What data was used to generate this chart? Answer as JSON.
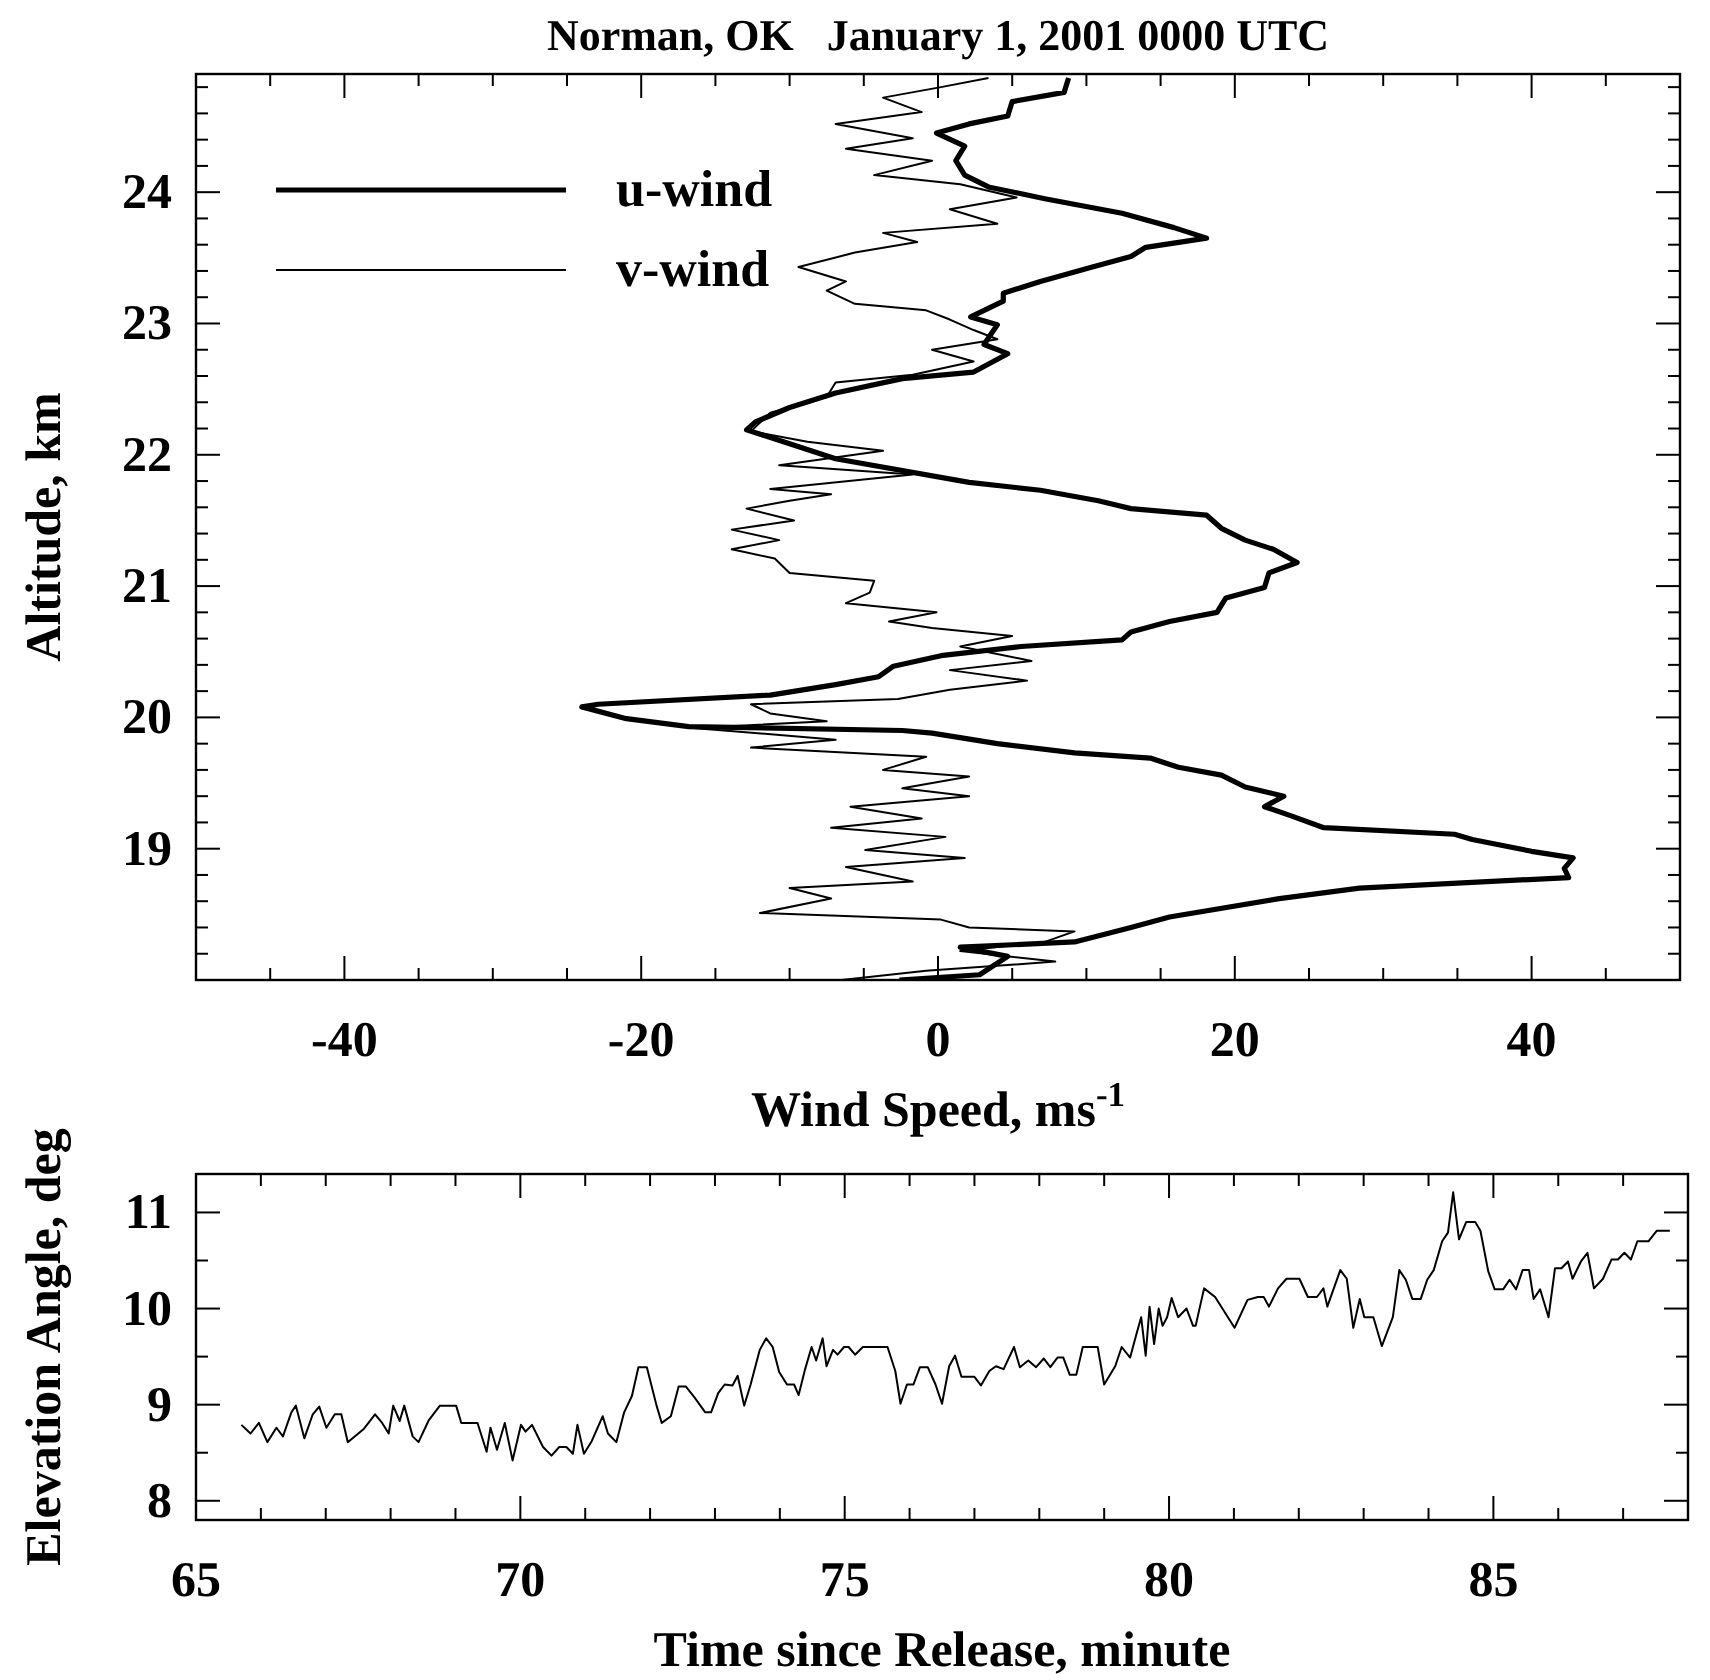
{
  "chart_data": [
    {
      "type": "line",
      "title": "Norman, OK   January 1, 2001 0000 UTC",
      "xlabel": "Wind Speed, ms$^{-1}$",
      "ylabel": "Altitude, km",
      "legend": "top left",
      "xlim": [
        -50,
        50
      ],
      "ylim": [
        18,
        24.9
      ],
      "xticks": [
        {
          "value": -50,
          "label": null
        },
        {
          "value": -45,
          "label": null
        },
        -40,
        {
          "value": -35,
          "label": null
        },
        {
          "value": -30,
          "label": null
        },
        {
          "value": -25,
          "label": null
        },
        -20,
        {
          "value": -15,
          "label": null
        },
        {
          "value": -10,
          "label": null
        },
        {
          "value": -5,
          "label": null
        },
        0,
        {
          "value": 5,
          "label": null
        },
        {
          "value": 10,
          "label": null
        },
        {
          "value": 15,
          "label": null
        },
        20,
        {
          "value": 25,
          "label": null
        },
        {
          "value": 30,
          "label": null
        },
        {
          "value": 35,
          "label": null
        },
        40,
        {
          "value": 45,
          "label": null
        },
        {
          "value": 50,
          "label": null
        }
      ],
      "yticks": [
        {
          "value": 18.2,
          "label": null
        },
        {
          "value": 18.4,
          "label": null
        },
        {
          "value": 18.6,
          "label": null
        },
        {
          "value": 18.8,
          "label": null
        },
        19,
        {
          "value": 19.2,
          "label": null
        },
        {
          "value": 19.4,
          "label": null
        },
        {
          "value": 19.6,
          "label": null
        },
        {
          "value": 19.8,
          "label": null
        },
        20,
        {
          "value": 20.2,
          "label": null
        },
        {
          "value": 20.4,
          "label": null
        },
        {
          "value": 20.6,
          "label": null
        },
        {
          "value": 20.8,
          "label": null
        },
        21,
        {
          "value": 21.2,
          "label": null
        },
        {
          "value": 21.4,
          "label": null
        },
        {
          "value": 21.6,
          "label": null
        },
        {
          "value": 21.8,
          "label": null
        },
        22,
        {
          "value": 22.2,
          "label": null
        },
        {
          "value": 22.4,
          "label": null
        },
        {
          "value": 22.6,
          "label": null
        },
        {
          "value": 22.8,
          "label": null
        },
        23,
        {
          "value": 23.2,
          "label": null
        },
        {
          "value": 23.4,
          "label": null
        },
        {
          "value": 23.6,
          "label": null
        },
        {
          "value": 23.8,
          "label": null
        },
        24,
        {
          "value": 24.2,
          "label": null
        },
        {
          "value": 24.4,
          "label": null
        },
        {
          "value": 24.6,
          "label": null
        },
        {
          "value": 24.8,
          "label": null
        }
      ],
      "series": [
        {
          "name": "u-wind",
          "color": "#000000",
          "x": [
            -2.6,
            2.8,
            4.7,
            1.5,
            9.2,
            13,
            15.6,
            23,
            28.4,
            42.5,
            42.2,
            42.8,
            40,
            36,
            34.8,
            26,
            23.8,
            22,
            23.3,
            20.7,
            19.1,
            16.2,
            14.3,
            9.2,
            4,
            -0.4,
            -2.4,
            -16.8,
            -21,
            -24,
            -22.9,
            -11.3,
            -6.9,
            -4,
            -3,
            0.2,
            5.6,
            12.4,
            13,
            15.6,
            18.8,
            19.4,
            22,
            22.3,
            24.2,
            22.6,
            20.7,
            19.1,
            18.1,
            13,
            10.8,
            6.9,
            2.1,
            -6.9,
            -12.9,
            -12.3,
            -10,
            -6.9,
            -2.4,
            2.4,
            4.7,
            3.1,
            4,
            2.2,
            4.4,
            4.4,
            6.9,
            10.4,
            13,
            14,
            18.1,
            15.9,
            12.4,
            7.2,
            3.4,
            1.8,
            1.2,
            1.8,
            -0.1,
            2.1,
            4.7,
            5,
            8.5,
            8.8
          ],
          "values": [
            18.0,
            18.04,
            18.18,
            18.25,
            18.29,
            18.4,
            18.48,
            18.62,
            18.7,
            18.78,
            18.85,
            18.93,
            18.98,
            19.07,
            19.11,
            19.16,
            19.25,
            19.32,
            19.4,
            19.47,
            19.56,
            19.62,
            19.69,
            19.73,
            19.8,
            19.88,
            19.9,
            19.93,
            19.99,
            20.08,
            20.1,
            20.17,
            20.25,
            20.31,
            20.39,
            20.47,
            20.54,
            20.59,
            20.65,
            20.73,
            20.8,
            20.91,
            20.99,
            21.1,
            21.18,
            21.28,
            21.35,
            21.44,
            21.54,
            21.59,
            21.65,
            21.73,
            21.79,
            21.97,
            22.19,
            22.25,
            22.36,
            22.47,
            22.58,
            22.63,
            22.77,
            22.84,
            22.99,
            23.05,
            23.17,
            23.23,
            23.32,
            23.43,
            23.51,
            23.58,
            23.65,
            23.73,
            23.84,
            23.95,
            24.04,
            24.13,
            24.24,
            24.35,
            24.45,
            24.52,
            24.58,
            24.69,
            24.76,
            24.87
          ]
        },
        {
          "name": "v-wind",
          "color": "#000000",
          "x": [
            -6.5,
            -0.8,
            7.9,
            1.5,
            7.2,
            9.2,
            2.1,
            0.2,
            -12,
            -7.2,
            -10,
            -1.7,
            -6.2,
            1.8,
            -4.9,
            0.5,
            -7.2,
            -1.1,
            -5.9,
            2.1,
            -2.4,
            2.1,
            -3.7,
            -0.8,
            -12.6,
            -6.9,
            -16.5,
            -7.5,
            -11.3,
            -12.6,
            -2.7,
            0.8,
            6,
            0.8,
            6.3,
            1.5,
            5,
            -0.4,
            -3.3,
            -0.1,
            -6.2,
            -4.6,
            -4.3,
            -10,
            -11,
            -13.9,
            -10.7,
            -13.9,
            -9.7,
            -12.9,
            -10,
            -7.2,
            -11.3,
            -1.7,
            -10.7,
            -3.7,
            -8.8,
            -12.6,
            -11.3,
            -7.5,
            -6.9,
            -1.7,
            2.4,
            -0.4,
            4,
            2.4,
            0.8,
            -0.8,
            -5.6,
            -7.5,
            -6.2,
            -9.4,
            -5.6,
            -1.4,
            -3.7,
            4,
            0.8,
            5.3,
            1.5,
            -4.3,
            -0.4,
            -6.2,
            -1.7,
            -6.9,
            -1.1,
            -3.7,
            0.2,
            3.4
          ],
          "values": [
            18.0,
            18.07,
            18.14,
            18.22,
            18.29,
            18.37,
            18.4,
            18.46,
            18.51,
            18.62,
            18.7,
            18.75,
            18.86,
            18.93,
            18.99,
            19.09,
            19.16,
            19.23,
            19.32,
            19.4,
            19.46,
            19.55,
            19.6,
            19.7,
            19.77,
            19.83,
            19.92,
            19.97,
            20.03,
            20.1,
            20.14,
            20.21,
            20.28,
            20.36,
            20.43,
            20.54,
            20.62,
            20.68,
            20.73,
            20.8,
            20.87,
            20.95,
            21.04,
            21.1,
            21.21,
            21.28,
            21.35,
            21.43,
            21.5,
            21.59,
            21.65,
            21.7,
            21.74,
            21.85,
            21.92,
            22.03,
            22.1,
            22.18,
            22.32,
            22.44,
            22.55,
            22.61,
            22.71,
            22.8,
            22.88,
            22.95,
            23.03,
            23.1,
            23.15,
            23.25,
            23.32,
            23.43,
            23.54,
            23.62,
            23.69,
            23.76,
            23.87,
            23.96,
            24.06,
            24.13,
            24.24,
            24.33,
            24.41,
            24.52,
            24.61,
            24.72,
            24.8,
            24.87
          ]
        }
      ]
    },
    {
      "type": "line",
      "xlabel": "Time since Release, minute",
      "ylabel": "Elevation Angle, deg",
      "xlim": [
        65,
        88
      ],
      "ylim": [
        7.8,
        11.4
      ],
      "xticks": [
        65,
        {
          "value": 66,
          "label": null
        },
        {
          "value": 67,
          "label": null
        },
        {
          "value": 68,
          "label": null
        },
        {
          "value": 69,
          "label": null
        },
        70,
        {
          "value": 71,
          "label": null
        },
        {
          "value": 72,
          "label": null
        },
        {
          "value": 73,
          "label": null
        },
        {
          "value": 74,
          "label": null
        },
        75,
        {
          "value": 76,
          "label": null
        },
        {
          "value": 77,
          "label": null
        },
        {
          "value": 78,
          "label": null
        },
        {
          "value": 79,
          "label": null
        },
        80,
        {
          "value": 81,
          "label": null
        },
        {
          "value": 82,
          "label": null
        },
        {
          "value": 83,
          "label": null
        },
        {
          "value": 84,
          "label": null
        },
        85,
        {
          "value": 86,
          "label": null
        },
        {
          "value": 87,
          "label": null
        }
      ],
      "yticks": [
        8,
        {
          "value": 8.5,
          "label": null
        },
        9,
        {
          "value": 9.5,
          "label": null
        },
        10,
        {
          "value": 10.5,
          "label": null
        },
        11
      ],
      "series": [
        {
          "color": "#000000",
          "x": [
            65.7,
            65.84,
            65.97,
            66.1,
            66.24,
            66.34,
            66.47,
            66.54,
            66.67,
            66.8,
            66.9,
            67.01,
            67.14,
            67.24,
            67.34,
            67.59,
            67.76,
            67.87,
            67.97,
            68.04,
            68.14,
            68.21,
            68.34,
            68.43,
            68.59,
            68.76,
            69.01,
            69.09,
            69.34,
            69.48,
            69.54,
            69.64,
            69.76,
            69.88,
            70.01,
            70.08,
            70.18,
            70.35,
            70.48,
            70.6,
            70.71,
            70.81,
            70.88,
            70.98,
            71.1,
            71.27,
            71.35,
            71.48,
            71.6,
            71.72,
            71.82,
            71.95,
            72.1,
            72.18,
            72.32,
            72.44,
            72.55,
            72.69,
            72.85,
            72.94,
            73.05,
            73.15,
            73.27,
            73.35,
            73.45,
            73.55,
            73.69,
            73.79,
            73.89,
            73.99,
            74.11,
            74.22,
            74.29,
            74.39,
            74.49,
            74.56,
            74.66,
            74.72,
            74.82,
            74.89,
            74.99,
            75.06,
            75.16,
            75.28,
            75.66,
            75.78,
            75.86,
            75.96,
            76.06,
            76.16,
            76.28,
            76.4,
            76.5,
            76.61,
            76.7,
            76.8,
            76.9,
            77.0,
            77.1,
            77.23,
            77.33,
            77.45,
            77.61,
            77.7,
            77.83,
            77.95,
            78.07,
            78.17,
            78.28,
            78.37,
            78.47,
            78.57,
            78.67,
            78.77,
            78.9,
            79.0,
            79.17,
            79.27,
            79.4,
            79.5,
            79.57,
            79.64,
            79.7,
            79.77,
            79.84,
            79.9,
            79.97,
            80.04,
            80.14,
            80.27,
            80.37,
            80.41,
            80.54,
            80.71,
            81.01,
            81.21,
            81.37,
            81.46,
            81.54,
            81.68,
            81.81,
            81.94,
            82.01,
            82.14,
            82.28,
            82.38,
            82.44,
            82.64,
            82.74,
            82.84,
            82.94,
            83.01,
            83.15,
            83.28,
            83.45,
            83.55,
            83.65,
            83.75,
            83.88,
            83.98,
            84.08,
            84.21,
            84.3,
            84.38,
            84.47,
            84.58,
            84.72,
            84.8,
            84.92,
            85.02,
            85.15,
            85.25,
            85.35,
            85.45,
            85.55,
            85.62,
            85.72,
            85.85,
            85.95,
            86.05,
            86.15,
            86.22,
            86.35,
            86.45,
            86.55,
            86.69,
            86.82,
            86.92,
            87.02,
            87.12,
            87.22,
            87.39,
            87.52,
            87.72
          ],
          "values": [
            8.79,
            8.7,
            8.81,
            8.61,
            8.76,
            8.67,
            8.92,
            8.99,
            8.65,
            8.9,
            8.98,
            8.76,
            8.9,
            8.9,
            8.61,
            8.75,
            8.9,
            8.81,
            8.7,
            8.99,
            8.83,
            8.99,
            8.67,
            8.61,
            8.84,
            8.99,
            8.99,
            8.81,
            8.81,
            8.51,
            8.76,
            8.53,
            8.81,
            8.42,
            8.79,
            8.72,
            8.79,
            8.56,
            8.47,
            8.56,
            8.56,
            8.49,
            8.79,
            8.49,
            8.62,
            8.88,
            8.7,
            8.61,
            8.92,
            9.09,
            9.39,
            9.39,
            8.99,
            8.81,
            8.88,
            9.19,
            9.19,
            9.07,
            8.92,
            8.92,
            9.12,
            9.21,
            9.2,
            9.3,
            8.99,
            9.21,
            9.57,
            9.69,
            9.6,
            9.34,
            9.21,
            9.21,
            9.1,
            9.37,
            9.6,
            9.46,
            9.69,
            9.4,
            9.57,
            9.52,
            9.6,
            9.6,
            9.52,
            9.6,
            9.6,
            9.35,
            9.01,
            9.21,
            9.21,
            9.39,
            9.39,
            9.21,
            9.01,
            9.4,
            9.51,
            9.29,
            9.29,
            9.29,
            9.2,
            9.35,
            9.4,
            9.37,
            9.6,
            9.39,
            9.46,
            9.39,
            9.48,
            9.39,
            9.49,
            9.49,
            9.31,
            9.31,
            9.6,
            9.6,
            9.6,
            9.21,
            9.4,
            9.6,
            9.49,
            9.74,
            9.91,
            9.51,
            10.02,
            9.63,
            10.0,
            9.82,
            9.91,
            10.11,
            9.91,
            10.0,
            9.82,
            9.82,
            10.21,
            10.12,
            9.8,
            10.09,
            10.12,
            10.12,
            10.02,
            10.21,
            10.31,
            10.31,
            10.31,
            10.12,
            10.12,
            10.21,
            10.02,
            10.4,
            10.31,
            9.8,
            10.1,
            9.91,
            9.91,
            9.61,
            9.91,
            10.4,
            10.3,
            10.1,
            10.1,
            10.3,
            10.4,
            10.7,
            10.79,
            11.21,
            10.72,
            10.9,
            10.9,
            10.81,
            10.39,
            10.2,
            10.2,
            10.3,
            10.2,
            10.4,
            10.4,
            10.1,
            10.2,
            9.91,
            10.42,
            10.42,
            10.49,
            10.31,
            10.49,
            10.58,
            10.21,
            10.31,
            10.51,
            10.51,
            10.58,
            10.51,
            10.7,
            10.7,
            10.81,
            10.81
          ]
        }
      ]
    }
  ]
}
